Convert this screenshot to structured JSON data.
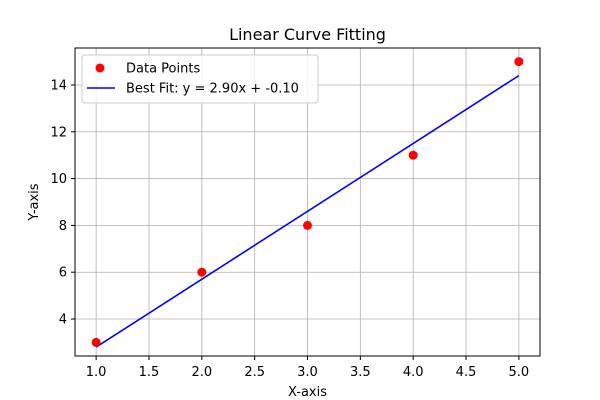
{
  "chart_data": {
    "type": "scatter",
    "title": "Linear Curve Fitting",
    "xlabel": "X-axis",
    "ylabel": "Y-axis",
    "xlim": [
      0.8,
      5.2
    ],
    "ylim": [
      2.42,
      15.58
    ],
    "x_ticks": [
      1.0,
      1.5,
      2.0,
      2.5,
      3.0,
      3.5,
      4.0,
      4.5,
      5.0
    ],
    "x_tick_labels": [
      "1.0",
      "1.5",
      "2.0",
      "2.5",
      "3.0",
      "3.5",
      "4.0",
      "4.5",
      "5.0"
    ],
    "y_ticks": [
      4,
      6,
      8,
      10,
      12,
      14
    ],
    "y_tick_labels": [
      "4",
      "6",
      "8",
      "10",
      "12",
      "14"
    ],
    "grid": true,
    "legend_position": "top-left",
    "series": [
      {
        "name": "Data Points",
        "kind": "scatter",
        "color": "#ff0000",
        "points": [
          {
            "x": 1,
            "y": 3
          },
          {
            "x": 2,
            "y": 6
          },
          {
            "x": 3,
            "y": 8
          },
          {
            "x": 4,
            "y": 11
          },
          {
            "x": 5,
            "y": 15
          }
        ]
      },
      {
        "name": "Best Fit: y = 2.90x + -0.10",
        "kind": "line",
        "color": "#0000ff",
        "points": [
          {
            "x": 1,
            "y": 2.8
          },
          {
            "x": 5,
            "y": 14.4
          }
        ]
      }
    ]
  }
}
